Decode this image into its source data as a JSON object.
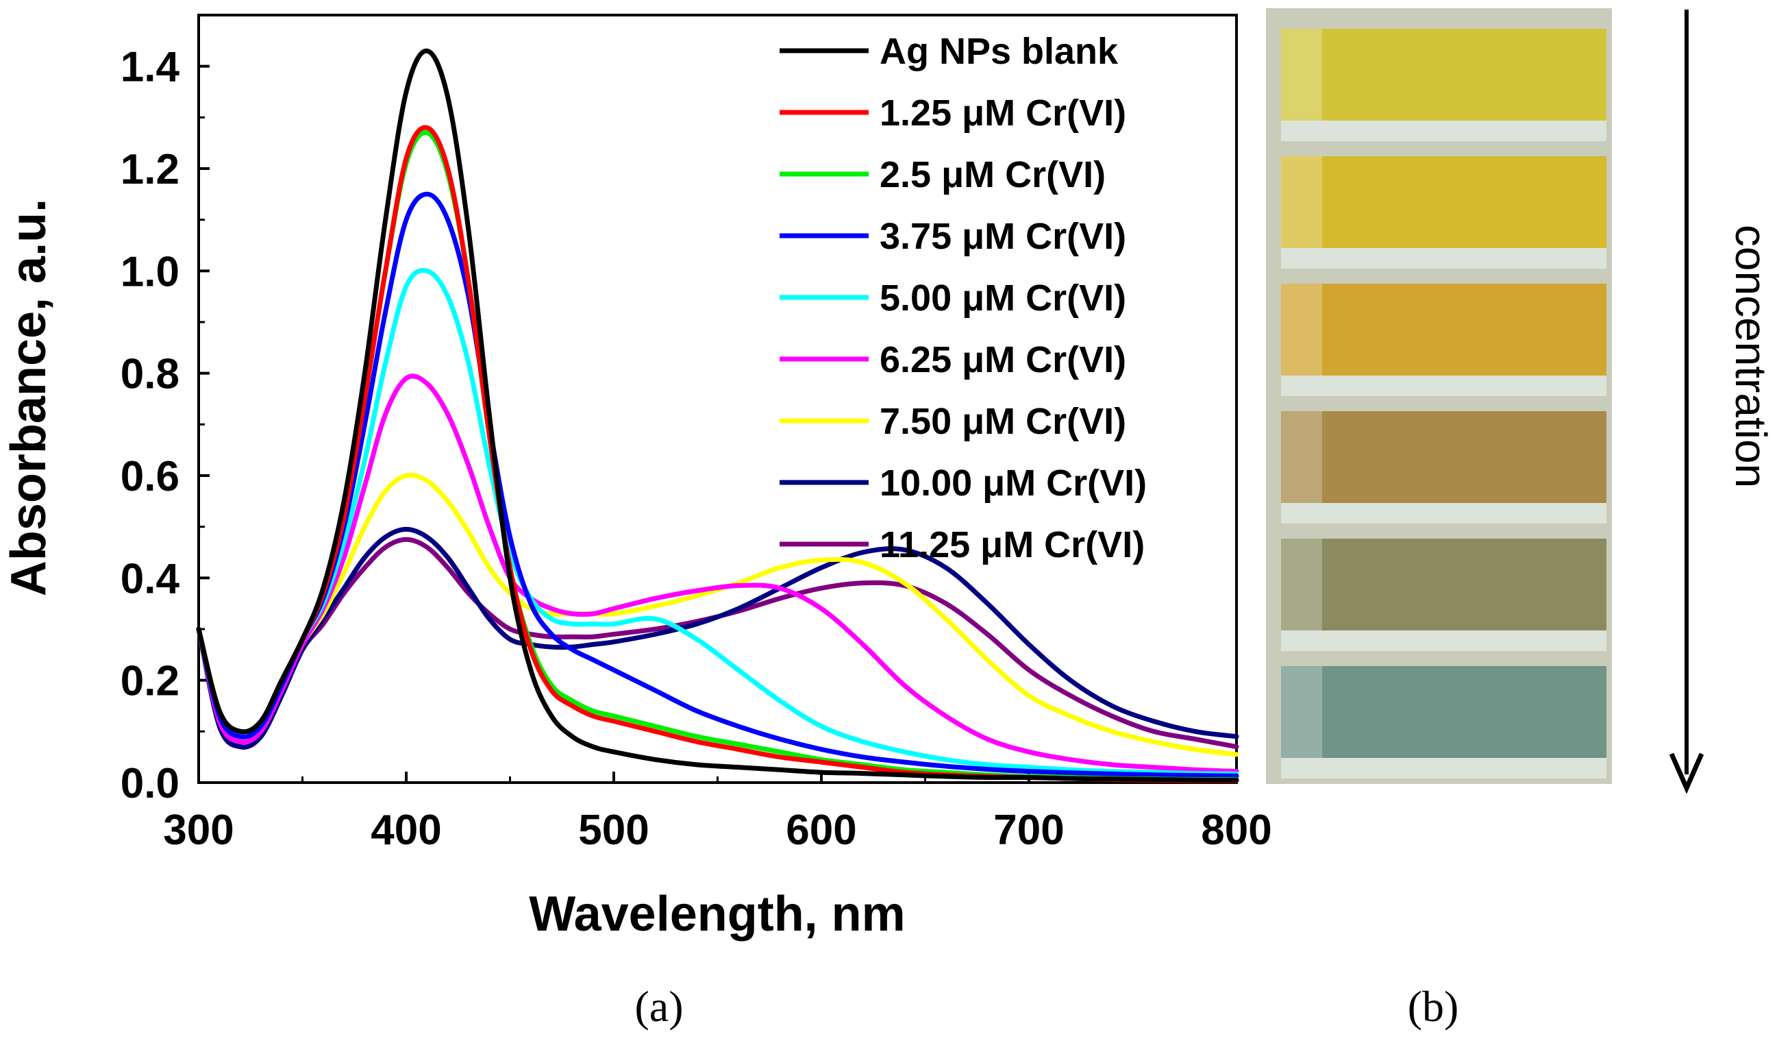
{
  "chart_data": {
    "type": "line",
    "title": "",
    "xlabel": "Wavelength, nm",
    "ylabel": "Absorbance, a.u.",
    "xlim": [
      300,
      800
    ],
    "ylim": [
      0.0,
      1.5
    ],
    "xticks": [
      "300",
      "400",
      "500",
      "600",
      "700",
      "800"
    ],
    "yticks": [
      "0.0",
      "0.2",
      "0.4",
      "0.6",
      "0.8",
      "1.0",
      "1.2",
      "1.4"
    ],
    "legend_position": "top-right",
    "x": [
      300,
      310,
      320,
      330,
      340,
      350,
      360,
      370,
      380,
      390,
      400,
      410,
      420,
      430,
      440,
      450,
      460,
      470,
      480,
      490,
      500,
      520,
      540,
      560,
      580,
      600,
      620,
      640,
      660,
      680,
      700,
      720,
      740,
      760,
      780,
      800
    ],
    "series": [
      {
        "name": "Ag NPs blank",
        "color": "#000000",
        "values": [
          0.3,
          0.14,
          0.1,
          0.12,
          0.2,
          0.28,
          0.38,
          0.55,
          0.8,
          1.1,
          1.35,
          1.43,
          1.34,
          1.08,
          0.72,
          0.4,
          0.22,
          0.13,
          0.09,
          0.07,
          0.06,
          0.045,
          0.035,
          0.03,
          0.025,
          0.02,
          0.018,
          0.015,
          0.012,
          0.01,
          0.01,
          0.008,
          0.007,
          0.006,
          0.005,
          0.005
        ]
      },
      {
        "name": "1.25 μM Cr(VI)",
        "color": "#ff0000",
        "values": [
          0.3,
          0.14,
          0.1,
          0.12,
          0.2,
          0.28,
          0.37,
          0.52,
          0.75,
          1.0,
          1.22,
          1.28,
          1.2,
          0.98,
          0.68,
          0.42,
          0.26,
          0.18,
          0.15,
          0.13,
          0.12,
          0.1,
          0.08,
          0.065,
          0.05,
          0.04,
          0.03,
          0.02,
          0.015,
          0.012,
          0.01,
          0.008,
          0.006,
          0.005,
          0.004,
          0.004
        ]
      },
      {
        "name": "2.5 μM Cr(VI)",
        "color": "#00ee00",
        "values": [
          0.3,
          0.14,
          0.1,
          0.12,
          0.2,
          0.28,
          0.37,
          0.52,
          0.75,
          1.0,
          1.21,
          1.27,
          1.19,
          0.98,
          0.68,
          0.42,
          0.27,
          0.19,
          0.16,
          0.14,
          0.13,
          0.11,
          0.09,
          0.075,
          0.06,
          0.045,
          0.035,
          0.025,
          0.02,
          0.015,
          0.012,
          0.01,
          0.008,
          0.007,
          0.006,
          0.006
        ]
      },
      {
        "name": "3.75 μM Cr(VI)",
        "color": "#0000ff",
        "values": [
          0.3,
          0.13,
          0.09,
          0.11,
          0.19,
          0.28,
          0.36,
          0.5,
          0.7,
          0.92,
          1.1,
          1.15,
          1.1,
          0.95,
          0.7,
          0.48,
          0.35,
          0.29,
          0.26,
          0.24,
          0.22,
          0.18,
          0.14,
          0.11,
          0.085,
          0.065,
          0.05,
          0.04,
          0.032,
          0.026,
          0.022,
          0.019,
          0.017,
          0.015,
          0.014,
          0.013
        ]
      },
      {
        "name": "5.00 μM Cr(VI)",
        "color": "#00ffff",
        "values": [
          0.3,
          0.13,
          0.09,
          0.11,
          0.19,
          0.28,
          0.35,
          0.47,
          0.63,
          0.82,
          0.97,
          1.0,
          0.95,
          0.82,
          0.62,
          0.45,
          0.36,
          0.32,
          0.31,
          0.31,
          0.31,
          0.32,
          0.28,
          0.22,
          0.16,
          0.11,
          0.08,
          0.06,
          0.045,
          0.035,
          0.03,
          0.025,
          0.022,
          0.02,
          0.018,
          0.017
        ]
      },
      {
        "name": "6.25 μM Cr(VI)",
        "color": "#ff00ff",
        "values": [
          0.3,
          0.12,
          0.08,
          0.1,
          0.18,
          0.27,
          0.34,
          0.44,
          0.58,
          0.72,
          0.79,
          0.78,
          0.72,
          0.62,
          0.5,
          0.4,
          0.36,
          0.34,
          0.33,
          0.33,
          0.34,
          0.36,
          0.375,
          0.385,
          0.38,
          0.34,
          0.27,
          0.19,
          0.13,
          0.085,
          0.06,
          0.045,
          0.035,
          0.03,
          0.025,
          0.022
        ]
      },
      {
        "name": "7.50 μM Cr(VI)",
        "color": "#ffff00",
        "values": [
          0.3,
          0.12,
          0.08,
          0.1,
          0.18,
          0.27,
          0.33,
          0.41,
          0.5,
          0.57,
          0.6,
          0.59,
          0.55,
          0.49,
          0.42,
          0.37,
          0.34,
          0.33,
          0.33,
          0.33,
          0.33,
          0.345,
          0.365,
          0.39,
          0.42,
          0.435,
          0.43,
          0.39,
          0.32,
          0.24,
          0.17,
          0.13,
          0.1,
          0.08,
          0.065,
          0.055
        ]
      },
      {
        "name": "10.00 μM Cr(VI)",
        "color": "#000080",
        "values": [
          0.3,
          0.11,
          0.07,
          0.09,
          0.17,
          0.26,
          0.32,
          0.38,
          0.44,
          0.48,
          0.495,
          0.48,
          0.44,
          0.38,
          0.32,
          0.28,
          0.27,
          0.265,
          0.265,
          0.27,
          0.275,
          0.29,
          0.31,
          0.34,
          0.38,
          0.42,
          0.45,
          0.455,
          0.42,
          0.35,
          0.27,
          0.2,
          0.15,
          0.12,
          0.1,
          0.09
        ]
      },
      {
        "name": "11.25 μM Cr(VI)",
        "color": "#800080",
        "values": [
          0.3,
          0.11,
          0.07,
          0.09,
          0.17,
          0.26,
          0.31,
          0.37,
          0.42,
          0.46,
          0.475,
          0.46,
          0.42,
          0.37,
          0.33,
          0.3,
          0.29,
          0.285,
          0.285,
          0.285,
          0.29,
          0.3,
          0.315,
          0.335,
          0.36,
          0.38,
          0.39,
          0.385,
          0.35,
          0.29,
          0.22,
          0.17,
          0.13,
          0.1,
          0.085,
          0.07
        ]
      }
    ]
  },
  "panels": {
    "a_label": "(a)",
    "b_label": "(b)"
  },
  "photo": {
    "arrow_label": "concentration",
    "cuvette_colors": [
      "#d2c43a",
      "#d4ba2c",
      "#d0a530",
      "#a98a48",
      "#8a8c60",
      "#6f9488"
    ],
    "frame_color": "#c9ccba"
  }
}
